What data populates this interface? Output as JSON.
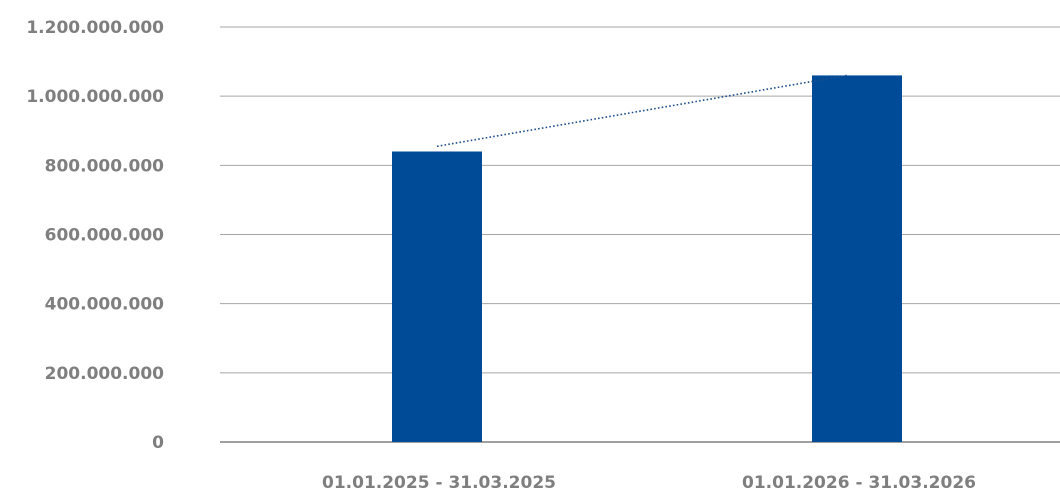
{
  "chart_data": {
    "type": "bar",
    "title": "",
    "xlabel": "",
    "ylabel": "",
    "categories": [
      "01.01.2025 - 31.03.2025",
      "01.01.2026 - 31.03.2026"
    ],
    "values": [
      840000000,
      1060000000
    ],
    "ylim": [
      0,
      1200000000
    ],
    "yticks": [
      0,
      200000000,
      400000000,
      600000000,
      800000000,
      1000000000,
      1200000000
    ],
    "ytick_labels": [
      "0",
      "200.000.000",
      "400.000.000",
      "600.000.000",
      "800.000.000",
      "1.000.000.000",
      "1.200.000.000"
    ],
    "grid": true,
    "legend": "none",
    "trendline": {
      "style": "dotted",
      "from": 855000000,
      "to": 1060000000
    },
    "colors": {
      "bar": "#004b98",
      "trendline": "#1f4e8c",
      "grid": "#a6a6a6",
      "axis": "#808080",
      "text": "#7f7f7f"
    }
  }
}
